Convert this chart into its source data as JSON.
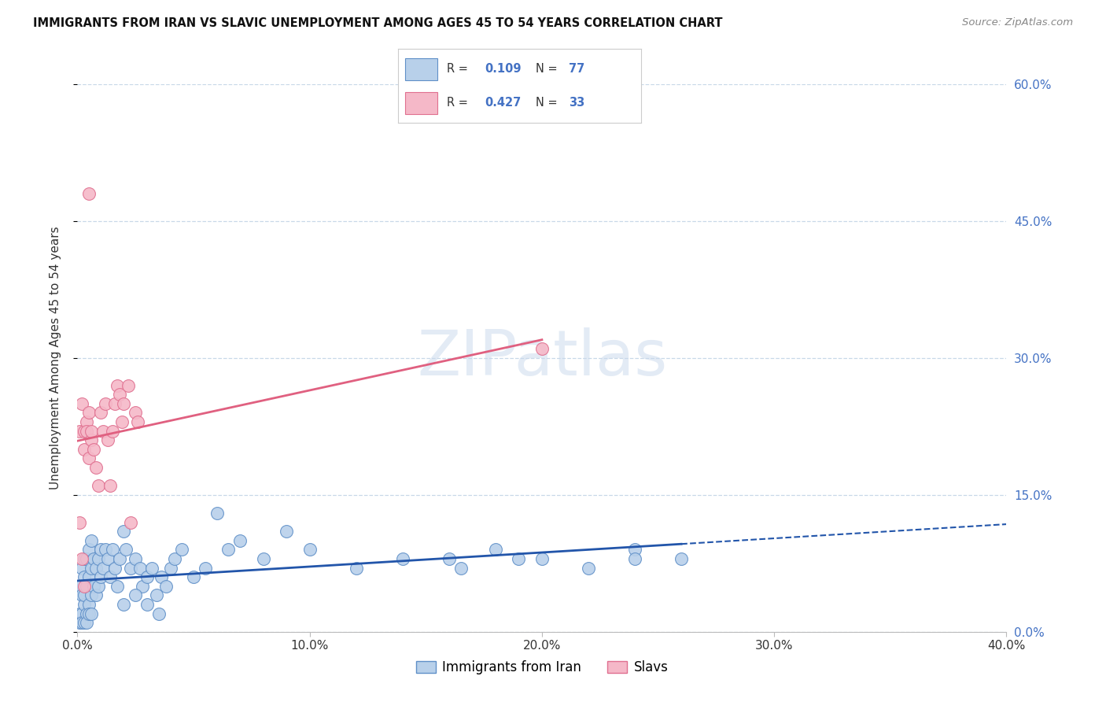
{
  "title": "IMMIGRANTS FROM IRAN VS SLAVIC UNEMPLOYMENT AMONG AGES 45 TO 54 YEARS CORRELATION CHART",
  "source": "Source: ZipAtlas.com",
  "ylabel": "Unemployment Among Ages 45 to 54 years",
  "xlim": [
    0.0,
    0.4
  ],
  "ylim": [
    0.0,
    0.6
  ],
  "xtick_values": [
    0.0,
    0.1,
    0.2,
    0.3,
    0.4
  ],
  "xtick_labels": [
    "0.0%",
    "10.0%",
    "20.0%",
    "30.0%",
    "40.0%"
  ],
  "ytick_values": [
    0.0,
    0.15,
    0.3,
    0.45,
    0.6
  ],
  "ytick_labels_right": [
    "0.0%",
    "15.0%",
    "30.0%",
    "45.0%",
    "60.0%"
  ],
  "legend1_label": "Immigrants from Iran",
  "legend2_label": "Slavs",
  "legend1_R": "0.109",
  "legend1_N": "77",
  "legend2_R": "0.427",
  "legend2_N": "33",
  "color_iran_fill": "#b8d0ea",
  "color_iran_edge": "#6090c8",
  "color_iran_line": "#2255aa",
  "color_slavic_fill": "#f5b8c8",
  "color_slavic_edge": "#e07090",
  "color_slavic_line": "#e06080",
  "color_axis_text": "#4472c4",
  "color_grid": "#c8d8e8",
  "watermark_text": "ZIPatlas",
  "iran_x": [
    0.001,
    0.001,
    0.001,
    0.002,
    0.002,
    0.002,
    0.002,
    0.003,
    0.003,
    0.003,
    0.003,
    0.003,
    0.004,
    0.004,
    0.004,
    0.004,
    0.005,
    0.005,
    0.005,
    0.005,
    0.006,
    0.006,
    0.006,
    0.006,
    0.007,
    0.007,
    0.008,
    0.008,
    0.009,
    0.009,
    0.01,
    0.01,
    0.011,
    0.012,
    0.013,
    0.014,
    0.015,
    0.016,
    0.017,
    0.018,
    0.02,
    0.021,
    0.023,
    0.025,
    0.027,
    0.028,
    0.03,
    0.032,
    0.034,
    0.036,
    0.038,
    0.04,
    0.042,
    0.045,
    0.05,
    0.055,
    0.06,
    0.065,
    0.07,
    0.08,
    0.09,
    0.1,
    0.12,
    0.14,
    0.16,
    0.18,
    0.2,
    0.22,
    0.24,
    0.26,
    0.02,
    0.025,
    0.03,
    0.035,
    0.165,
    0.19,
    0.24
  ],
  "iran_y": [
    0.02,
    0.05,
    0.01,
    0.02,
    0.04,
    0.07,
    0.01,
    0.03,
    0.06,
    0.08,
    0.01,
    0.04,
    0.02,
    0.05,
    0.08,
    0.01,
    0.03,
    0.06,
    0.09,
    0.02,
    0.04,
    0.07,
    0.1,
    0.02,
    0.05,
    0.08,
    0.04,
    0.07,
    0.05,
    0.08,
    0.06,
    0.09,
    0.07,
    0.09,
    0.08,
    0.06,
    0.09,
    0.07,
    0.05,
    0.08,
    0.11,
    0.09,
    0.07,
    0.08,
    0.07,
    0.05,
    0.06,
    0.07,
    0.04,
    0.06,
    0.05,
    0.07,
    0.08,
    0.09,
    0.06,
    0.07,
    0.13,
    0.09,
    0.1,
    0.08,
    0.11,
    0.09,
    0.07,
    0.08,
    0.08,
    0.09,
    0.08,
    0.07,
    0.09,
    0.08,
    0.03,
    0.04,
    0.03,
    0.02,
    0.07,
    0.08,
    0.08
  ],
  "slavic_x": [
    0.001,
    0.001,
    0.002,
    0.002,
    0.003,
    0.003,
    0.004,
    0.004,
    0.005,
    0.005,
    0.006,
    0.006,
    0.007,
    0.008,
    0.009,
    0.01,
    0.011,
    0.012,
    0.013,
    0.014,
    0.015,
    0.016,
    0.017,
    0.018,
    0.019,
    0.02,
    0.022,
    0.023,
    0.025,
    0.026,
    0.005,
    0.2,
    0.003
  ],
  "slavic_y": [
    0.22,
    0.12,
    0.08,
    0.25,
    0.22,
    0.2,
    0.23,
    0.22,
    0.19,
    0.24,
    0.21,
    0.22,
    0.2,
    0.18,
    0.16,
    0.24,
    0.22,
    0.25,
    0.21,
    0.16,
    0.22,
    0.25,
    0.27,
    0.26,
    0.23,
    0.25,
    0.27,
    0.12,
    0.24,
    0.23,
    0.48,
    0.31,
    0.05
  ]
}
